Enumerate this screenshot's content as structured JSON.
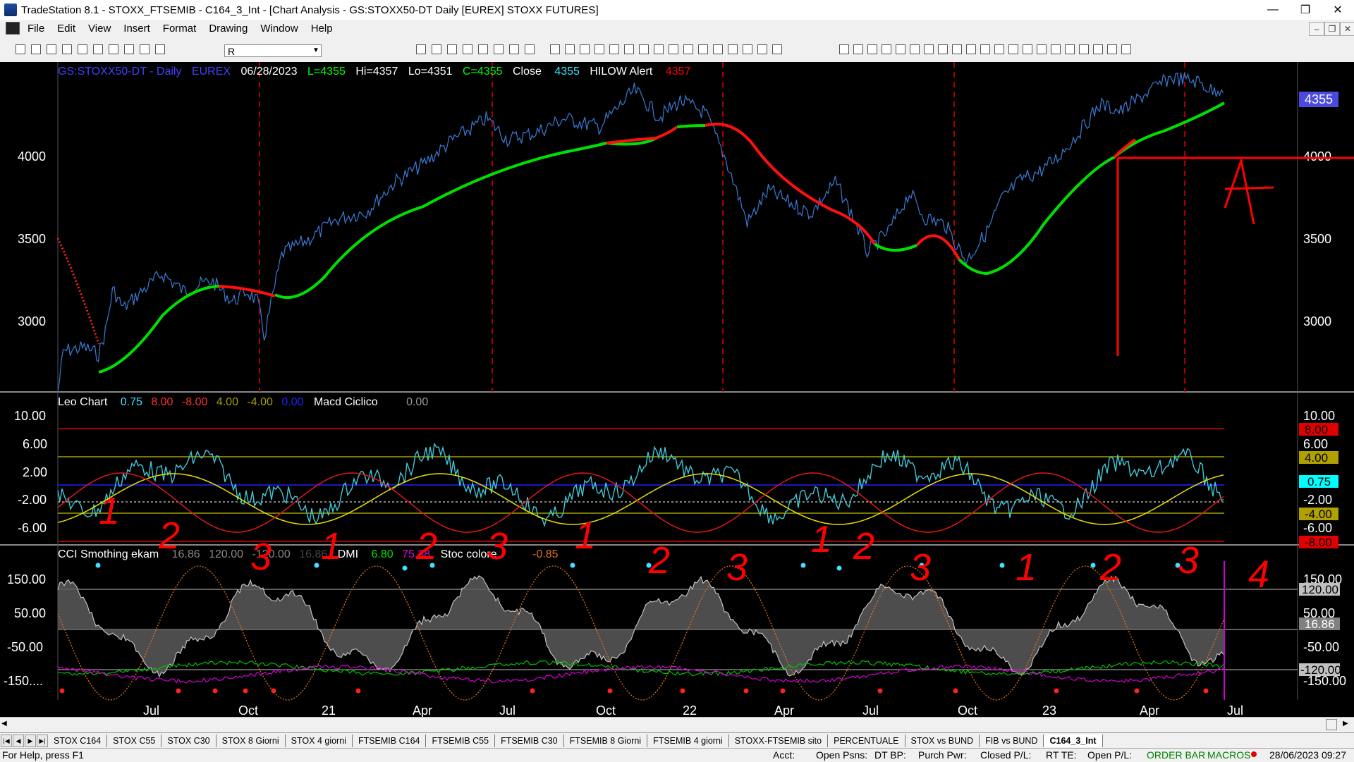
{
  "window": {
    "title": "TradeStation 8.1 - STOXX_FTSEMIB - C164_3_Int - [Chart Analysis - GS:STOXX50-DT  Daily  [EUREX] STOXX FUTURES]"
  },
  "menu": [
    "File",
    "Edit",
    "View",
    "Insert",
    "Format",
    "Drawing",
    "Window",
    "Help"
  ],
  "toolbar": {
    "symbol_value": "R"
  },
  "chart": {
    "header": {
      "symbol": "GS:STOXX50-DT - Daily",
      "exchange": "EUREX",
      "date": "06/28/2023",
      "last": "L=4355",
      "high": "Hi=4357",
      "low": "Lo=4351",
      "close": "C=4355",
      "close_label": "Close",
      "close_value": "4355",
      "study": "HILOW Alert",
      "study_value": "4357"
    },
    "price_axis": [
      "4000",
      "3500",
      "3000"
    ],
    "price_axis_left": [
      "4000",
      "3500",
      "3000"
    ],
    "last_price_tag": "4355",
    "leo_header": {
      "name": "Leo Chart",
      "v1": "0.75",
      "v2": "8.00",
      "v3": "-8.00",
      "v4": "4.00",
      "v5": "-4.00",
      "v6": "0.00",
      "macd_name": "Macd Ciclico",
      "macd_value": "0.00"
    },
    "leo_axis": [
      "10.00",
      "6.00",
      "2.00",
      "-2.00",
      "-6.00"
    ],
    "leo_right_axis": [
      "10.00",
      "6.00",
      "-2.00",
      "-6.00"
    ],
    "leo_tags": {
      "t8": "8.00",
      "t4": "4.00",
      "t075": "0.75",
      "tm4": "-4.00",
      "tm8": "-8.00"
    },
    "cci_header": {
      "name": "CCI Smothing ekam",
      "v1": "16.86",
      "v2": "120.00",
      "v3": "-120.00",
      "v4": "16.86",
      "dmi": "DMI",
      "dmi_plus": "6.80",
      "dmi_minus": "75.38",
      "stoc": "Stoc colore",
      "stoc_value": "-0.85"
    },
    "cci_axis": [
      "150.00",
      "50.00",
      "-50.00",
      "-150...."
    ],
    "cci_right_axis": [
      "150.00",
      "50.00",
      "-50.00",
      "-150.00"
    ],
    "cci_tags": {
      "t120": "120.00",
      "t1686": "16.86",
      "tm120": "-120.00"
    },
    "time_axis": [
      "Jul",
      "Oct",
      "21",
      "Apr",
      "Jul",
      "Oct",
      "22",
      "Apr",
      "Jul",
      "Oct",
      "23",
      "Apr",
      "Jul"
    ],
    "annotations": {
      "letter": "A",
      "counts": [
        "1",
        "2",
        "3",
        "1",
        "2",
        "3",
        "1",
        "2",
        "3",
        "1",
        "2",
        "3",
        "1",
        "2",
        "3",
        "4"
      ]
    }
  },
  "tabs": [
    "STOX C164",
    "STOX C55",
    "STOX  C30",
    "STOX  8 Giorni",
    "STOX 4 giorni",
    "FTSEMIB C164",
    "FTSEMIB C55",
    "FTSEMIB C30",
    "FTSEMIB  8 Giorni",
    "FTSEMIB  4 giorni",
    "STOXX-FTSEMIB sito",
    "PERCENTUALE",
    "STOX vs BUND",
    "FIB vs BUND",
    "C164_3_Int"
  ],
  "status": {
    "help": "For Help, press F1",
    "acct": "Acct:",
    "open_psns": "Open Psns:",
    "dt_bp": "DT BP:",
    "purch_pwr": "Purch Pwr:",
    "closed_pl": "Closed P/L:",
    "rt_te": "RT TE:",
    "open_pl": "Open P/L:",
    "order_bar": "ORDER BAR",
    "macros": "MACROS",
    "datetime": "28/06/2023 09:27"
  },
  "colors": {
    "background": "#000000",
    "price_bars": "#40e0ff",
    "avg_up": "#00ff00",
    "avg_down": "#ff0000",
    "annotation": "#ff0000",
    "leo_line": "#40c8d8",
    "cci_fill": "#808080"
  }
}
